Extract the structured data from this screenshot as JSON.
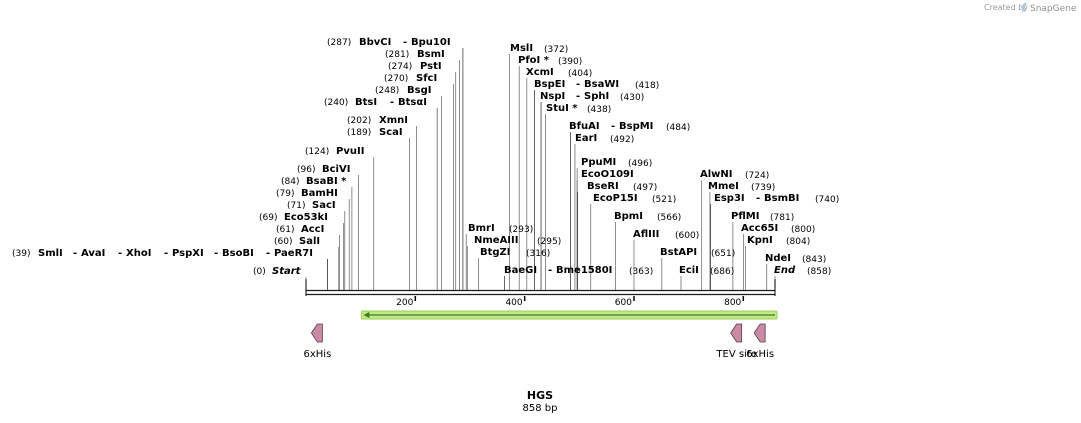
{
  "branding": {
    "prefix": "Created by",
    "name": "SnapGene"
  },
  "sequence": {
    "name": "HGS",
    "length_label": "858 bp",
    "length": 858
  },
  "ruler": {
    "ticks": [
      200,
      400,
      600,
      800
    ]
  },
  "colors": {
    "backbone": "#1a1a1a",
    "orf_fill": "#c3e88a",
    "orf_stroke": "#3f7d1e",
    "feature_fill": "#c98aa6",
    "feature_stroke": "#5a3a4a"
  },
  "sites": [
    {
      "name": "Start",
      "pos": "(0)",
      "bp": 0,
      "italic": true
    },
    {
      "name": "SmlI",
      "pos": "(39)",
      "bp": 39
    },
    {
      "name": "AvaI",
      "pos": "",
      "bp": 39
    },
    {
      "name": "XhoI",
      "pos": "",
      "bp": 39
    },
    {
      "name": "PspXI",
      "pos": "",
      "bp": 39
    },
    {
      "name": "BsoBI",
      "pos": "",
      "bp": 39
    },
    {
      "name": "PaeR7I",
      "pos": "",
      "bp": 39
    },
    {
      "name": "SalI",
      "pos": "(60)",
      "bp": 60
    },
    {
      "name": "AccI",
      "pos": "(61)",
      "bp": 61
    },
    {
      "name": "Eco53kI",
      "pos": "(69)",
      "bp": 69
    },
    {
      "name": "SacI",
      "pos": "(71)",
      "bp": 71
    },
    {
      "name": "BamHI",
      "pos": "(79)",
      "bp": 79
    },
    {
      "name": "BsaBI *",
      "pos": "(84)",
      "bp": 84
    },
    {
      "name": "BciVI",
      "pos": "(96)",
      "bp": 96
    },
    {
      "name": "PvuII",
      "pos": "(124)",
      "bp": 124
    },
    {
      "name": "ScaI",
      "pos": "(189)",
      "bp": 189
    },
    {
      "name": "XmnI",
      "pos": "(202)",
      "bp": 202
    },
    {
      "name": "BtsI",
      "pos": "(240)",
      "bp": 240
    },
    {
      "name": "BtsαI",
      "pos": "",
      "bp": 240
    },
    {
      "name": "BsgI",
      "pos": "(248)",
      "bp": 248
    },
    {
      "name": "SfcI",
      "pos": "(270)",
      "bp": 270
    },
    {
      "name": "PstI",
      "pos": "(274)",
      "bp": 274
    },
    {
      "name": "BsmI",
      "pos": "(281)",
      "bp": 281
    },
    {
      "name": "BbvCI",
      "pos": "(287)",
      "bp": 287
    },
    {
      "name": "Bpu10I",
      "pos": "",
      "bp": 287
    },
    {
      "name": "BmrI",
      "pos": "(293)",
      "bp": 293
    },
    {
      "name": "NmeAIII",
      "pos": "(295)",
      "bp": 295
    },
    {
      "name": "BtgZI",
      "pos": "(316)",
      "bp": 316
    },
    {
      "name": "BaeGI",
      "pos": "",
      "bp": 363
    },
    {
      "name": "Bme1580I",
      "pos": "(363)",
      "bp": 363
    },
    {
      "name": "MslI",
      "pos": "(372)",
      "bp": 372
    },
    {
      "name": "PfoI *",
      "pos": "(390)",
      "bp": 390
    },
    {
      "name": "XcmI",
      "pos": "(404)",
      "bp": 404
    },
    {
      "name": "BspEI",
      "pos": "",
      "bp": 418
    },
    {
      "name": "BsaWI",
      "pos": "(418)",
      "bp": 418
    },
    {
      "name": "NspI",
      "pos": "",
      "bp": 430
    },
    {
      "name": "SphI",
      "pos": "(430)",
      "bp": 430
    },
    {
      "name": "StuI *",
      "pos": "(438)",
      "bp": 438
    },
    {
      "name": "BfuAI",
      "pos": "",
      "bp": 484
    },
    {
      "name": "BspMI",
      "pos": "(484)",
      "bp": 484
    },
    {
      "name": "EarI",
      "pos": "(492)",
      "bp": 492
    },
    {
      "name": "PpuMI",
      "pos": "(496)",
      "bp": 496
    },
    {
      "name": "EcoO109I",
      "pos": "",
      "bp": 496
    },
    {
      "name": "BseRI",
      "pos": "(497)",
      "bp": 497
    },
    {
      "name": "EcoP15I",
      "pos": "(521)",
      "bp": 521
    },
    {
      "name": "BpmI",
      "pos": "(566)",
      "bp": 566
    },
    {
      "name": "AflIII",
      "pos": "(600)",
      "bp": 600
    },
    {
      "name": "BstAPI",
      "pos": "(651)",
      "bp": 651
    },
    {
      "name": "EciI",
      "pos": "(686)",
      "bp": 686
    },
    {
      "name": "AlwNI",
      "pos": "(724)",
      "bp": 724
    },
    {
      "name": "MmeI",
      "pos": "(739)",
      "bp": 739
    },
    {
      "name": "Esp3I",
      "pos": "",
      "bp": 740
    },
    {
      "name": "BsmBI",
      "pos": "(740)",
      "bp": 740
    },
    {
      "name": "PflMI",
      "pos": "(781)",
      "bp": 781
    },
    {
      "name": "Acc65I",
      "pos": "(800)",
      "bp": 800
    },
    {
      "name": "KpnI",
      "pos": "(804)",
      "bp": 804
    },
    {
      "name": "NdeI",
      "pos": "(843)",
      "bp": 843
    },
    {
      "name": "End",
      "pos": "(858)",
      "bp": 858,
      "italic": true
    }
  ],
  "orf": {
    "direction": "reverse",
    "start_bp": 105,
    "end_bp": 858
  },
  "features": [
    {
      "name": "6xHis",
      "bp": 30,
      "direction": "reverse"
    },
    {
      "name": "TEV site",
      "bp": 797,
      "direction": "reverse"
    },
    {
      "name": "6xHis",
      "bp": 840,
      "direction": "reverse"
    }
  ]
}
